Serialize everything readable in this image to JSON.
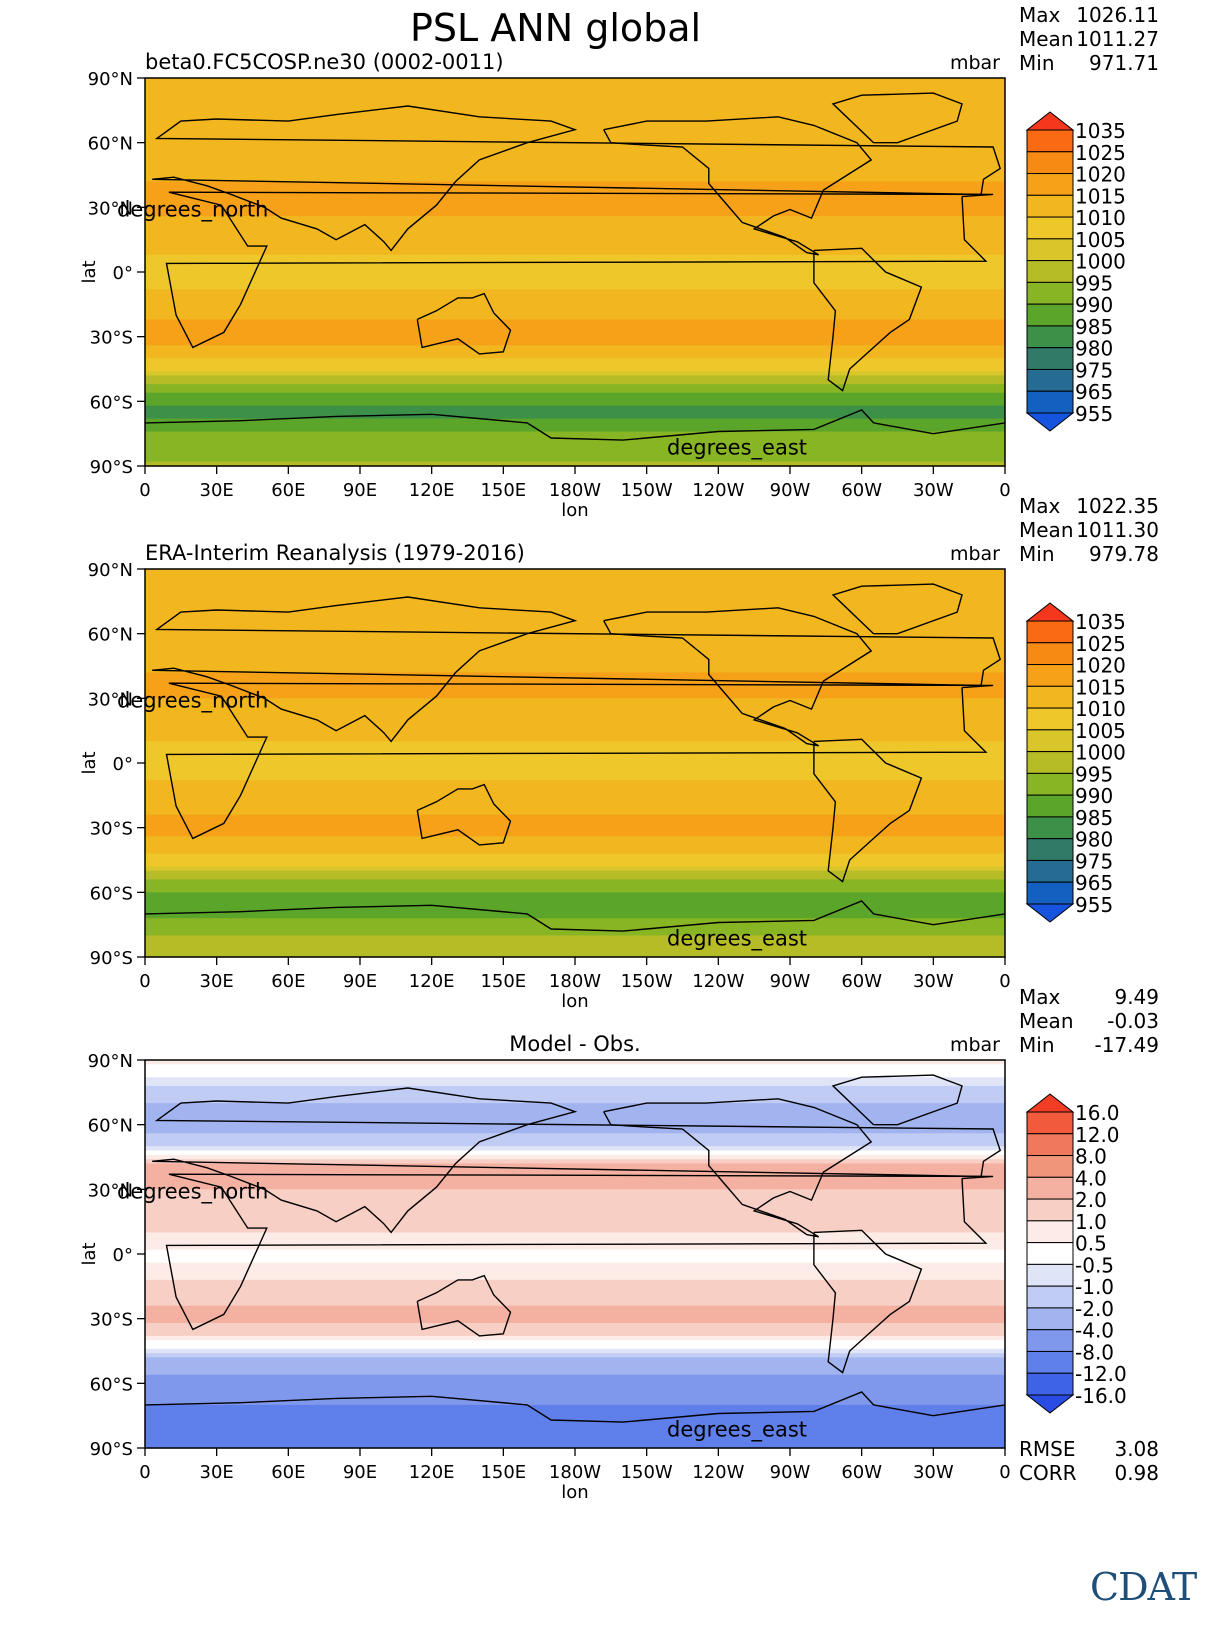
{
  "main_title": "PSL ANN global",
  "logo_text": "CDAT",
  "chart_data": [
    {
      "type": "heatmap",
      "title": "beta0.FC5COSP.ne30 (0002-0011)",
      "units": "mbar",
      "stats": {
        "max_label": "Max",
        "max": "1026.11",
        "mean_label": "Mean",
        "mean": "1011.27",
        "min_label": "Min",
        "min": "971.71"
      },
      "xlabel": "lon",
      "ylabel": "lat",
      "x_ticks": [
        "0",
        "30E",
        "60E",
        "90E",
        "120E",
        "150E",
        "180W",
        "150W",
        "120W",
        "90W",
        "60W",
        "30W",
        "0"
      ],
      "y_ticks": [
        "90°N",
        "60°N",
        "30°N",
        "0°",
        "30°S",
        "60°S",
        "90°S"
      ],
      "lon_units_label": "degrees_east",
      "lat_units_label": "degrees_north",
      "colorbar_levels": [
        "1035",
        "1025",
        "1020",
        "1015",
        "1010",
        "1005",
        "1000",
        "995",
        "990",
        "985",
        "980",
        "975",
        "965",
        "955"
      ],
      "colorbar_colors": [
        "#f5371e",
        "#f96a12",
        "#f78a12",
        "#f7a118",
        "#f2b61e",
        "#eec72a",
        "#d8c62a",
        "#b6bc26",
        "#88b524",
        "#5aa52a",
        "#3d9048",
        "#327a68",
        "#266b92",
        "#1460c0",
        "#1654e0"
      ],
      "lat_profile": [
        {
          "lat": 90,
          "value": 1013
        },
        {
          "lat": 70,
          "value": 1014
        },
        {
          "lat": 50,
          "value": 1013
        },
        {
          "lat": 35,
          "value": 1017
        },
        {
          "lat": 15,
          "value": 1012
        },
        {
          "lat": 0,
          "value": 1008
        },
        {
          "lat": -15,
          "value": 1012
        },
        {
          "lat": -30,
          "value": 1018
        },
        {
          "lat": -45,
          "value": 1006
        },
        {
          "lat": -55,
          "value": 990
        },
        {
          "lat": -65,
          "value": 982
        },
        {
          "lat": -75,
          "value": 990
        },
        {
          "lat": -90,
          "value": 996
        }
      ]
    },
    {
      "type": "heatmap",
      "title": "ERA-Interim Reanalysis (1979-2016)",
      "units": "mbar",
      "stats": {
        "max_label": "Max",
        "max": "1022.35",
        "mean_label": "Mean",
        "mean": "1011.30",
        "min_label": "Min",
        "min": "979.78"
      },
      "xlabel": "lon",
      "ylabel": "lat",
      "x_ticks": [
        "0",
        "30E",
        "60E",
        "90E",
        "120E",
        "150E",
        "180W",
        "150W",
        "120W",
        "90W",
        "60W",
        "30W",
        "0"
      ],
      "y_ticks": [
        "90°N",
        "60°N",
        "30°N",
        "0°",
        "30°S",
        "60°S",
        "90°S"
      ],
      "lon_units_label": "degrees_east",
      "lat_units_label": "degrees_north",
      "colorbar_levels": [
        "1035",
        "1025",
        "1020",
        "1015",
        "1010",
        "1005",
        "1000",
        "995",
        "990",
        "985",
        "980",
        "975",
        "965",
        "955"
      ],
      "colorbar_colors": [
        "#f5371e",
        "#f96a12",
        "#f78a12",
        "#f7a118",
        "#f2b61e",
        "#eec72a",
        "#d8c62a",
        "#b6bc26",
        "#88b524",
        "#5aa52a",
        "#3d9048",
        "#327a68",
        "#266b92",
        "#1460c0",
        "#1654e0"
      ],
      "lat_profile": [
        {
          "lat": 90,
          "value": 1013
        },
        {
          "lat": 70,
          "value": 1015
        },
        {
          "lat": 50,
          "value": 1014
        },
        {
          "lat": 35,
          "value": 1016
        },
        {
          "lat": 15,
          "value": 1011
        },
        {
          "lat": 0,
          "value": 1008
        },
        {
          "lat": -15,
          "value": 1012
        },
        {
          "lat": -30,
          "value": 1017
        },
        {
          "lat": -45,
          "value": 1008
        },
        {
          "lat": -55,
          "value": 994
        },
        {
          "lat": -65,
          "value": 986
        },
        {
          "lat": -75,
          "value": 992
        },
        {
          "lat": -90,
          "value": 1000
        }
      ]
    },
    {
      "type": "heatmap",
      "title": "Model - Obs.",
      "units": "mbar",
      "stats": {
        "max_label": "Max",
        "max": "9.49",
        "mean_label": "Mean",
        "mean": "-0.03",
        "min_label": "Min",
        "min": "-17.49"
      },
      "metrics": {
        "rmse_label": "RMSE",
        "rmse": "3.08",
        "corr_label": "CORR",
        "corr": "0.98"
      },
      "xlabel": "lon",
      "ylabel": "lat",
      "x_ticks": [
        "0",
        "30E",
        "60E",
        "90E",
        "120E",
        "150E",
        "180W",
        "150W",
        "120W",
        "90W",
        "60W",
        "30W",
        "0"
      ],
      "y_ticks": [
        "90°N",
        "60°N",
        "30°N",
        "0°",
        "30°S",
        "60°S",
        "90°S"
      ],
      "lon_units_label": "degrees_east",
      "lat_units_label": "degrees_north",
      "colorbar_levels": [
        "16.0",
        "12.0",
        "8.0",
        "4.0",
        "2.0",
        "1.0",
        "0.5",
        "-0.5",
        "-1.0",
        "-2.0",
        "-4.0",
        "-8.0",
        "-12.0",
        "-16.0"
      ],
      "colorbar_colors": [
        "#f23c24",
        "#f25a3c",
        "#f0785c",
        "#f0947a",
        "#f4b0a0",
        "#f8cfc4",
        "#fcebe6",
        "#ffffff",
        "#dfe5f7",
        "#c1ccf4",
        "#a2b4f0",
        "#7f98ec",
        "#5f7fea",
        "#3f63e6",
        "#2a4ce4"
      ],
      "lat_profile": [
        {
          "lat": 90,
          "value": 0.8
        },
        {
          "lat": 75,
          "value": -1.5
        },
        {
          "lat": 60,
          "value": -3.0
        },
        {
          "lat": 50,
          "value": -1.0
        },
        {
          "lat": 40,
          "value": 2.5
        },
        {
          "lat": 25,
          "value": 1.8
        },
        {
          "lat": 10,
          "value": 1.0
        },
        {
          "lat": 0,
          "value": 0.3
        },
        {
          "lat": -15,
          "value": 1.2
        },
        {
          "lat": -30,
          "value": 2.4
        },
        {
          "lat": -42,
          "value": 0.2
        },
        {
          "lat": -50,
          "value": -2.5
        },
        {
          "lat": -62,
          "value": -6.0
        },
        {
          "lat": -75,
          "value": -9.0
        },
        {
          "lat": -90,
          "value": -11.0
        }
      ]
    }
  ]
}
